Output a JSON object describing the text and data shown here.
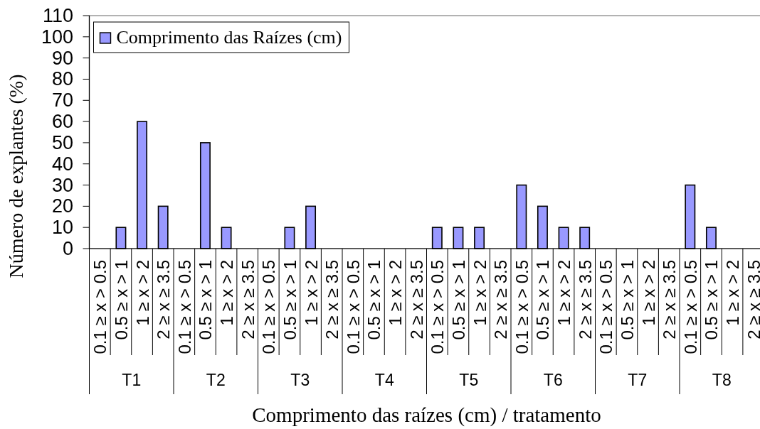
{
  "chart_data": {
    "type": "bar",
    "categories": [
      "0.1 ≥ x > 0.5",
      "0.5 ≥ x > 1",
      "1 ≥ x > 2",
      "2 ≥ x ≥ 3.5",
      "0.1 ≥ x > 0.5",
      "0.5 ≥ x > 1",
      "1 ≥ x > 2",
      "2 ≥ x ≥ 3.5",
      "0.1 ≥ x > 0.5",
      "0.5 ≥ x > 1",
      "1 ≥ x > 2",
      "2 ≥ x ≥ 3.5",
      "0.1 ≥ x > 0.5",
      "0.5 ≥ x > 1",
      "1 ≥ x > 2",
      "2 ≥ x ≥ 3.5",
      "0.1 ≥ x > 0.5",
      "0.5 ≥ x > 1",
      "1 ≥ x > 2",
      "2 ≥ x ≥ 3.5",
      "0.1 ≥ x > 0.5",
      "0.5 ≥ x > 1",
      "1 ≥ x > 2",
      "2 ≥ x ≥ 3.5",
      "0.1 ≥ x > 0.5",
      "0.5 ≥ x > 1",
      "1 ≥ x > 2",
      "2 ≥ x ≥ 3.5",
      "0.1 ≥ x > 0.5",
      "0.5 ≥ x > 1",
      "1 ≥ x > 2",
      "2 ≥ x ≥ 3.5"
    ],
    "series": [
      {
        "name": "Comprimento das Raízes (cm)",
        "color": "#9999ff",
        "values": [
          0,
          10,
          60,
          20,
          0,
          50,
          10,
          0,
          0,
          10,
          20,
          0,
          0,
          0,
          0,
          0,
          10,
          10,
          10,
          0,
          30,
          20,
          10,
          10,
          0,
          0,
          0,
          0,
          30,
          10,
          0,
          0
        ]
      }
    ],
    "ylim": [
      0,
      110
    ],
    "yticks": [
      0,
      10,
      20,
      30,
      40,
      50,
      60,
      70,
      80,
      90,
      100,
      110
    ],
    "xlabel": "Comprimento das raízes (cm) / tratamento",
    "ylabel": "Número de explantes (%)",
    "legend": "top left",
    "annotations": [
      "T1",
      "T2",
      "T3",
      "T4",
      "T5",
      "T6",
      "T7",
      "T8"
    ]
  }
}
